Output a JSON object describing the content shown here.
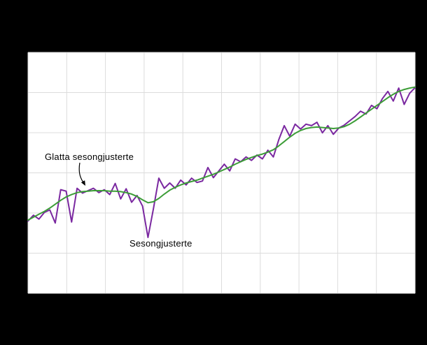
{
  "chart_data": {
    "type": "line",
    "title": "",
    "xlabel": "",
    "ylabel": "",
    "background": "#000000",
    "plot_background": "#ffffff",
    "grid_color": "#dcdcdc",
    "grid": {
      "v_divisions": 10,
      "h_divisions": 6
    },
    "x_count": 72,
    "ylim": [
      85,
      135
    ],
    "legend_position": "none",
    "series": [
      {
        "name": "Sesongjusterte",
        "color": "#7a28a0",
        "width": 2,
        "values": [
          100.0,
          101.2,
          100.4,
          101.8,
          102.3,
          99.6,
          106.5,
          106.2,
          99.8,
          106.8,
          105.8,
          106.3,
          106.8,
          105.9,
          106.5,
          105.5,
          107.8,
          104.6,
          106.7,
          103.9,
          105.3,
          103.1,
          96.6,
          102.5,
          108.9,
          106.8,
          107.9,
          106.8,
          108.5,
          107.5,
          108.9,
          108.0,
          108.3,
          111.1,
          109.0,
          110.4,
          111.8,
          110.4,
          112.9,
          112.3,
          113.3,
          112.6,
          113.7,
          112.9,
          114.7,
          113.3,
          116.9,
          119.8,
          117.6,
          120.1,
          119.1,
          120.1,
          119.8,
          120.5,
          118.3,
          119.8,
          118.0,
          119.3,
          119.9,
          120.8,
          121.7,
          122.8,
          122.2,
          124.0,
          123.3,
          125.4,
          126.9,
          124.9,
          127.6,
          124.2,
          126.5,
          127.7
        ]
      },
      {
        "name": "Glatta sesongjusterte",
        "color": "#3c9d37",
        "width": 2,
        "values": [
          100.2,
          100.8,
          101.4,
          102.0,
          102.7,
          103.5,
          104.3,
          105.0,
          105.5,
          105.9,
          106.1,
          106.2,
          106.3,
          106.3,
          106.3,
          106.2,
          106.2,
          106.1,
          105.9,
          105.6,
          105.1,
          104.4,
          103.8,
          104.0,
          104.7,
          105.6,
          106.4,
          107.0,
          107.5,
          107.9,
          108.2,
          108.5,
          108.9,
          109.3,
          109.7,
          110.2,
          110.7,
          111.2,
          111.8,
          112.3,
          112.8,
          113.2,
          113.6,
          113.9,
          114.3,
          114.8,
          115.6,
          116.5,
          117.4,
          118.2,
          118.8,
          119.2,
          119.4,
          119.5,
          119.4,
          119.3,
          119.2,
          119.3,
          119.6,
          120.1,
          120.8,
          121.6,
          122.4,
          123.2,
          124.0,
          124.8,
          125.6,
          126.3,
          126.9,
          127.3,
          127.6,
          127.8
        ]
      }
    ],
    "annotations": [
      {
        "text": "Glatta sesongjusterte"
      },
      {
        "text": "Sesongjusterte"
      }
    ]
  }
}
